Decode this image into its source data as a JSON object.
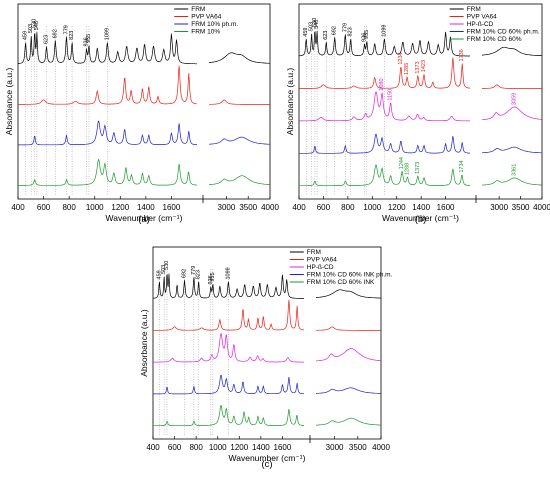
{
  "chart_data": [
    {
      "type": "line",
      "panel_label": "(a)",
      "xlabel": "Wavenumber (cm⁻¹)",
      "ylabel": "Absorbance (a.u.)",
      "x_ticks_left": [
        "400",
        "600",
        "800",
        "1000",
        "1200",
        "1400",
        "1600"
      ],
      "x_ticks_right": [
        "3000",
        "3500",
        "4000"
      ],
      "xlim_left": [
        400,
        1800
      ],
      "xlim_right": [
        2600,
        4000
      ],
      "legend_position": "top-right",
      "series": [
        {
          "name": "FRM",
          "color": "#000000"
        },
        {
          "name": "PVP VA64",
          "color": "#e8201a"
        },
        {
          "name": "FRM 10% ph.m.",
          "color": "#1f1fd0"
        },
        {
          "name": "FRM 10%",
          "color": "#1a9a2a"
        }
      ],
      "peak_labels": [
        {
          "text": "459",
          "x": 459
        },
        {
          "text": "503",
          "x": 503
        },
        {
          "text": "530",
          "x": 530
        },
        {
          "text": "548",
          "x": 548
        },
        {
          "text": "623",
          "x": 623
        },
        {
          "text": "692",
          "x": 692
        },
        {
          "text": "779",
          "x": 779
        },
        {
          "text": "823",
          "x": 823
        },
        {
          "text": "936",
          "x": 936
        },
        {
          "text": "955",
          "x": 955
        },
        {
          "text": "1099",
          "x": 1099
        }
      ]
    },
    {
      "type": "line",
      "panel_label": "(b)",
      "xlabel": "Wavenumber (cm⁻¹)",
      "ylabel": "Absorbance (a.u.)",
      "x_ticks_left": [
        "400",
        "600",
        "800",
        "1000",
        "1200",
        "1400",
        "1600"
      ],
      "x_ticks_right": [
        "3000",
        "3500",
        "4000"
      ],
      "xlim_left": [
        400,
        1800
      ],
      "xlim_right": [
        2600,
        4000
      ],
      "legend_position": "top-right",
      "series": [
        {
          "name": "FRM",
          "color": "#000000"
        },
        {
          "name": "PVP VA64",
          "color": "#e8201a"
        },
        {
          "name": "HP-ß-CD",
          "color": "#e020e0"
        },
        {
          "name": "FRM 10% CD 60% ph.m.",
          "color": "#1f1fd0"
        },
        {
          "name": "FRM 10% CD 60%",
          "color": "#1a9a2a"
        }
      ],
      "peak_labels": [
        {
          "text": "459",
          "x": 459
        },
        {
          "text": "503",
          "x": 503
        },
        {
          "text": "530",
          "x": 530
        },
        {
          "text": "548",
          "x": 548
        },
        {
          "text": "623",
          "x": 623
        },
        {
          "text": "692",
          "x": 692
        },
        {
          "text": "779",
          "x": 779
        },
        {
          "text": "823",
          "x": 823
        },
        {
          "text": "936",
          "x": 936
        },
        {
          "text": "955",
          "x": 955
        },
        {
          "text": "1099",
          "x": 1099
        }
      ],
      "colored_labels": [
        {
          "text": "1234",
          "x": 1234,
          "color": "#e8201a"
        },
        {
          "text": "1285",
          "x": 1285,
          "color": "#e8201a"
        },
        {
          "text": "1373",
          "x": 1373,
          "color": "#e8201a"
        },
        {
          "text": "1423",
          "x": 1423,
          "color": "#e8201a"
        },
        {
          "text": "1736",
          "x": 1736,
          "color": "#e8201a"
        },
        {
          "text": "1080",
          "x": 1080,
          "color": "#e020e0"
        },
        {
          "text": "1150",
          "x": 1150,
          "color": "#e020e0"
        },
        {
          "text": "3359",
          "x": 3359,
          "color": "#e020e0"
        },
        {
          "text": "1244",
          "x": 1244,
          "color": "#1a9a2a"
        },
        {
          "text": "1288",
          "x": 1288,
          "color": "#1a9a2a"
        },
        {
          "text": "1373",
          "x": 1373,
          "color": "#1a9a2a"
        },
        {
          "text": "1734",
          "x": 1734,
          "color": "#1a9a2a"
        },
        {
          "text": "3361",
          "x": 3361,
          "color": "#1a9a2a"
        }
      ]
    },
    {
      "type": "line",
      "panel_label": "(c)",
      "xlabel": "Wavenumber (cm⁻¹)",
      "ylabel": "Absorbance (a.u.)",
      "x_ticks_left": [
        "400",
        "600",
        "800",
        "1000",
        "1200",
        "1400",
        "1600"
      ],
      "x_ticks_right": [
        "3000",
        "3500",
        "4000"
      ],
      "xlim_left": [
        400,
        1800
      ],
      "xlim_right": [
        2600,
        4000
      ],
      "legend_position": "top-right",
      "series": [
        {
          "name": "FRM",
          "color": "#000000"
        },
        {
          "name": "PVP VA64",
          "color": "#e8201a"
        },
        {
          "name": "HP-ß-CD",
          "color": "#e020e0"
        },
        {
          "name": "FRM 10% CD 60% INK ph.m.",
          "color": "#1f1fd0"
        },
        {
          "name": "FRM 10% CD 60% INK",
          "color": "#1a9a2a"
        }
      ],
      "peak_labels": [
        {
          "text": "459",
          "x": 459
        },
        {
          "text": "503",
          "x": 503
        },
        {
          "text": "530",
          "x": 530
        },
        {
          "text": "692",
          "x": 692
        },
        {
          "text": "779",
          "x": 779
        },
        {
          "text": "823",
          "x": 823
        },
        {
          "text": "936",
          "x": 936
        },
        {
          "text": "955",
          "x": 955
        },
        {
          "text": "1099",
          "x": 1099
        }
      ]
    }
  ]
}
